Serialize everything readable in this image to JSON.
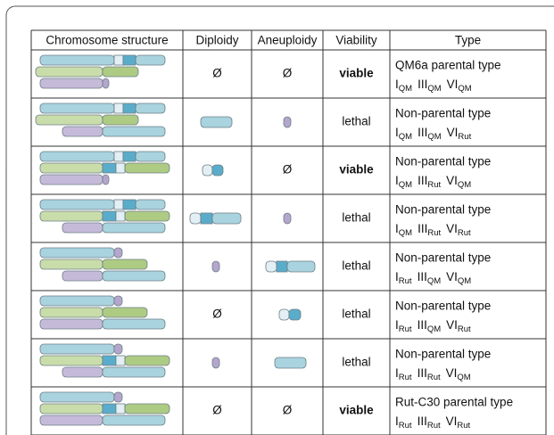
{
  "table": {
    "header": [
      "Chromosome structure",
      "Diploidy",
      "Aneuploidy",
      "Viability",
      "Type"
    ],
    "rows": [
      {
        "diploidy": "Ø",
        "aneuploidy": "Ø",
        "viability": "viable",
        "viability_color": "#2aa13a",
        "type": "QM6a parental type",
        "genotype": [
          [
            "I",
            "QM"
          ],
          [
            "III",
            "QM"
          ],
          [
            "VI",
            "QM"
          ]
        ]
      },
      {
        "viability": "lethal",
        "viability_color": "#e3262b",
        "type": "Non-parental type",
        "genotype": [
          [
            "I",
            "QM"
          ],
          [
            "III",
            "QM"
          ],
          [
            "VI",
            "Rut"
          ]
        ]
      },
      {
        "aneuploidy": "Ø",
        "viability": "viable",
        "viability_color": "#2aa13a",
        "type": "Non-parental type",
        "genotype": [
          [
            "I",
            "QM"
          ],
          [
            "III",
            "Rut"
          ],
          [
            "VI",
            "QM"
          ]
        ]
      },
      {
        "viability": "lethal",
        "viability_color": "#e3262b",
        "type": "Non-parental type",
        "genotype": [
          [
            "I",
            "QM"
          ],
          [
            "III",
            "Rut"
          ],
          [
            "VI",
            "Rut"
          ]
        ]
      },
      {
        "viability": "lethal",
        "viability_color": "#e3262b",
        "type": "Non-parental type",
        "genotype": [
          [
            "I",
            "Rut"
          ],
          [
            "III",
            "QM"
          ],
          [
            "VI",
            "QM"
          ]
        ]
      },
      {
        "diploidy": "Ø",
        "viability": "lethal",
        "viability_color": "#e3262b",
        "type": "Non-parental type",
        "genotype": [
          [
            "I",
            "Rut"
          ],
          [
            "III",
            "QM"
          ],
          [
            "VI",
            "Rut"
          ]
        ]
      },
      {
        "viability": "lethal",
        "viability_color": "#e3262b",
        "type": "Non-parental type",
        "genotype": [
          [
            "I",
            "Rut"
          ],
          [
            "III",
            "Rut"
          ],
          [
            "VI",
            "QM"
          ]
        ]
      },
      {
        "diploidy": "Ø",
        "aneuploidy": "Ø",
        "viability": "viable",
        "viability_color": "#2aa13a",
        "type": "Rut-C30 parental type",
        "genotype": [
          [
            "I",
            "Rut"
          ],
          [
            "III",
            "Rut"
          ],
          [
            "VI",
            "Rut"
          ]
        ]
      }
    ]
  }
}
